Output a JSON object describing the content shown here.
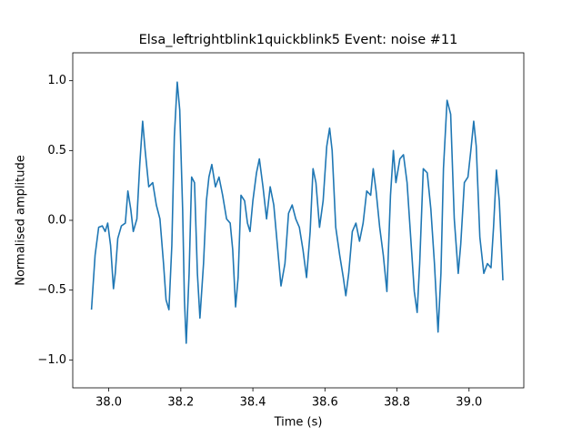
{
  "chart_data": {
    "type": "line",
    "title": "Elsa_leftrightblink1quickblink5 Event: noise #11",
    "x_label": "Time (s)",
    "y_label": "Normalised amplitude",
    "color": "#1f77b4",
    "xlim": [
      37.9,
      39.152
    ],
    "ylim": [
      -1.2,
      1.2
    ],
    "xticks": [
      {
        "value": 38,
        "label": "38.0"
      },
      38.2,
      38.4,
      38.6,
      38.8,
      {
        "value": 39,
        "label": "39.0"
      }
    ],
    "yticks": [
      {
        "value": -1,
        "label": "−1.0"
      },
      {
        "value": -0.5,
        "label": "−0.5"
      },
      {
        "value": 0,
        "label": "0.0"
      },
      0.5,
      {
        "value": 1,
        "label": "1.0"
      }
    ],
    "x": [
      37.952,
      37.962,
      37.972,
      37.982,
      37.99,
      37.997,
      38.005,
      38.013,
      38.018,
      38.025,
      38.035,
      38.046,
      38.053,
      38.061,
      38.068,
      38.078,
      38.086,
      38.094,
      38.101,
      38.111,
      38.122,
      38.132,
      38.142,
      38.152,
      38.159,
      38.167,
      38.175,
      38.182,
      38.19,
      38.197,
      38.205,
      38.21,
      38.215,
      38.223,
      38.23,
      38.238,
      38.246,
      38.253,
      38.263,
      38.271,
      38.278,
      38.286,
      38.296,
      38.306,
      38.316,
      38.327,
      38.337,
      38.344,
      38.352,
      38.359,
      38.367,
      38.377,
      38.385,
      38.392,
      38.4,
      38.41,
      38.418,
      38.428,
      38.438,
      38.448,
      38.458,
      38.468,
      38.478,
      38.489,
      38.499,
      38.509,
      38.519,
      38.529,
      38.539,
      38.549,
      38.559,
      38.567,
      38.575,
      38.585,
      38.595,
      38.605,
      38.613,
      38.62,
      38.63,
      38.641,
      38.651,
      38.658,
      38.666,
      38.676,
      38.686,
      38.696,
      38.706,
      38.716,
      38.727,
      38.734,
      38.742,
      38.752,
      38.762,
      38.772,
      38.782,
      38.79,
      38.797,
      38.808,
      38.818,
      38.828,
      38.838,
      38.848,
      38.856,
      38.863,
      38.873,
      38.884,
      38.894,
      38.904,
      38.914,
      38.922,
      38.929,
      38.939,
      38.949,
      38.959,
      38.97,
      38.977,
      38.987,
      38.997,
      39.005,
      39.013,
      39.02,
      39.03,
      39.041,
      39.051,
      39.061,
      39.068,
      39.076,
      39.084,
      39.094
    ],
    "values": [
      -0.64,
      -0.25,
      -0.05,
      -0.04,
      -0.08,
      -0.02,
      -0.18,
      -0.49,
      -0.38,
      -0.13,
      -0.04,
      -0.02,
      0.21,
      0.08,
      -0.08,
      0.01,
      0.4,
      0.71,
      0.5,
      0.24,
      0.27,
      0.11,
      0.01,
      -0.31,
      -0.57,
      -0.64,
      -0.18,
      0.6,
      0.99,
      0.79,
      0.08,
      -0.57,
      -0.88,
      -0.38,
      0.31,
      0.27,
      -0.38,
      -0.7,
      -0.31,
      0.14,
      0.31,
      0.4,
      0.24,
      0.31,
      0.18,
      0.01,
      -0.02,
      -0.21,
      -0.62,
      -0.41,
      0.18,
      0.14,
      -0.02,
      -0.08,
      0.14,
      0.34,
      0.44,
      0.24,
      0.01,
      0.24,
      0.11,
      -0.18,
      -0.47,
      -0.31,
      0.05,
      0.11,
      0.01,
      -0.05,
      -0.21,
      -0.41,
      -0.08,
      0.37,
      0.27,
      -0.05,
      0.14,
      0.53,
      0.66,
      0.5,
      -0.05,
      -0.25,
      -0.41,
      -0.54,
      -0.38,
      -0.08,
      -0.02,
      -0.15,
      -0.02,
      0.21,
      0.18,
      0.37,
      0.21,
      -0.05,
      -0.25,
      -0.51,
      0.18,
      0.5,
      0.27,
      0.44,
      0.47,
      0.27,
      -0.12,
      -0.51,
      -0.66,
      -0.31,
      0.37,
      0.34,
      0.08,
      -0.31,
      -0.8,
      -0.38,
      0.37,
      0.86,
      0.76,
      0.01,
      -0.38,
      -0.17,
      0.27,
      0.31,
      0.5,
      0.71,
      0.53,
      -0.12,
      -0.38,
      -0.31,
      -0.34,
      -0.05,
      0.36,
      0.14,
      -0.43
    ]
  }
}
